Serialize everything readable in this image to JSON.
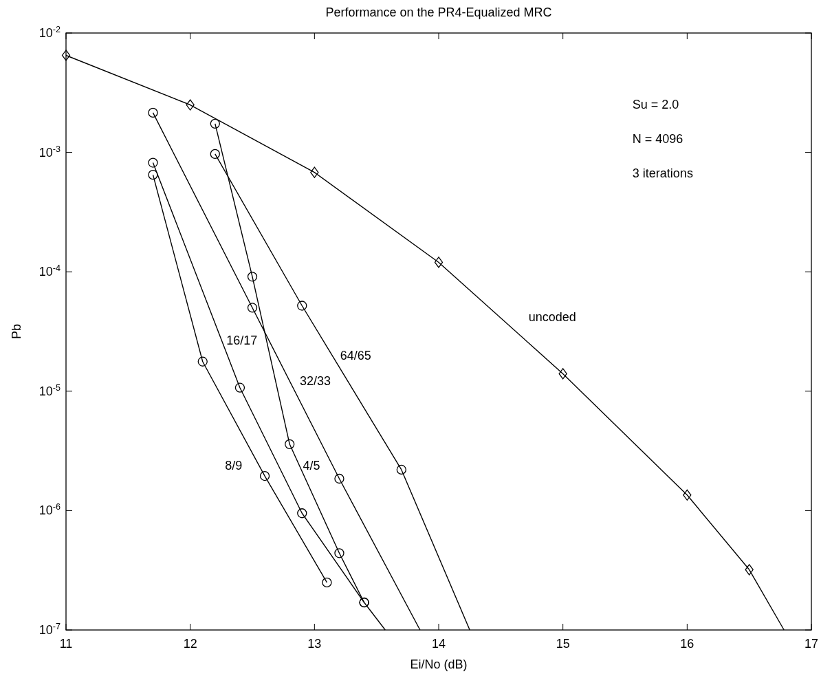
{
  "chart_data": {
    "type": "line",
    "title": "Performance on the PR4-Equalized MRC",
    "xlabel": "Ei/No (dB)",
    "ylabel": "Pb",
    "log": "y",
    "grid": false,
    "line_style": "solid",
    "xlim": [
      11,
      17
    ],
    "xticks": [
      11,
      12,
      13,
      14,
      15,
      16,
      17
    ],
    "ylim": [
      1e-07,
      0.01
    ],
    "yticks": [
      {
        "value": 1e-07,
        "label": "10$^{-7}$"
      },
      {
        "value": 1e-06,
        "label": "10$^{-6}$"
      },
      {
        "value": 1e-05,
        "label": "10$^{-5}$"
      },
      {
        "value": 0.0001,
        "label": "10$^{-4}$"
      },
      {
        "value": 0.001,
        "label": "10$^{-3}$"
      },
      {
        "value": 0.01,
        "label": "10$^{-2}$"
      }
    ],
    "annotations": [
      "Su = 2.0",
      "N = 4096",
      "3 iterations"
    ],
    "series": [
      {
        "name": "uncoded",
        "color": "#000000",
        "marker": "diamond",
        "x": [
          11,
          12,
          13,
          14,
          15,
          16,
          16.5
        ],
        "values": [
          0.0065,
          0.0025,
          0.00068,
          0.00012,
          1.4e-05,
          1.35e-06,
          3.2e-07
        ]
      },
      {
        "name": "8/9",
        "color": "#000000",
        "marker": "circle",
        "x": [
          11.7,
          12.1,
          12.6,
          13.1
        ],
        "values": [
          0.00065,
          1.77e-05,
          1.95e-06,
          2.5e-07
        ]
      },
      {
        "name": "16/17",
        "color": "#000000",
        "marker": "circle",
        "x": [
          11.7,
          12.4,
          12.9,
          13.4
        ],
        "values": [
          0.00082,
          1.07e-05,
          9.5e-07,
          1.7e-07
        ]
      },
      {
        "name": "32/33",
        "color": "#000000",
        "marker": "circle",
        "x": [
          11.7,
          12.5,
          13.2
        ],
        "values": [
          0.00215,
          5e-05,
          1.85e-06
        ]
      },
      {
        "name": "4/5",
        "color": "#000000",
        "marker": "circle",
        "x": [
          12.2,
          12.5,
          12.8,
          13.2,
          13.4
        ],
        "values": [
          0.00174,
          9.1e-05,
          3.6e-06,
          4.4e-07,
          1.7e-07
        ]
      },
      {
        "name": "64/65",
        "color": "#000000",
        "marker": "circle",
        "x": [
          12.2,
          12.9,
          13.7
        ],
        "values": [
          0.00097,
          5.2e-05,
          2.2e-06
        ]
      },
      {
        "color": "#000000",
        "marker": "none",
        "x": [
          16.5,
          16.78
        ],
        "values": [
          3.2e-07,
          1e-07
        ]
      },
      {
        "color": "#000000",
        "marker": "none",
        "x": [
          13.4,
          13.57
        ],
        "values": [
          1.7e-07,
          1e-07
        ]
      },
      {
        "color": "#000000",
        "marker": "none",
        "x": [
          13.2,
          13.85
        ],
        "values": [
          1.85e-06,
          1e-07
        ]
      },
      {
        "color": "#000000",
        "marker": "none",
        "x": [
          13.7,
          14.25
        ],
        "values": [
          2.2e-06,
          1e-07
        ]
      }
    ]
  }
}
